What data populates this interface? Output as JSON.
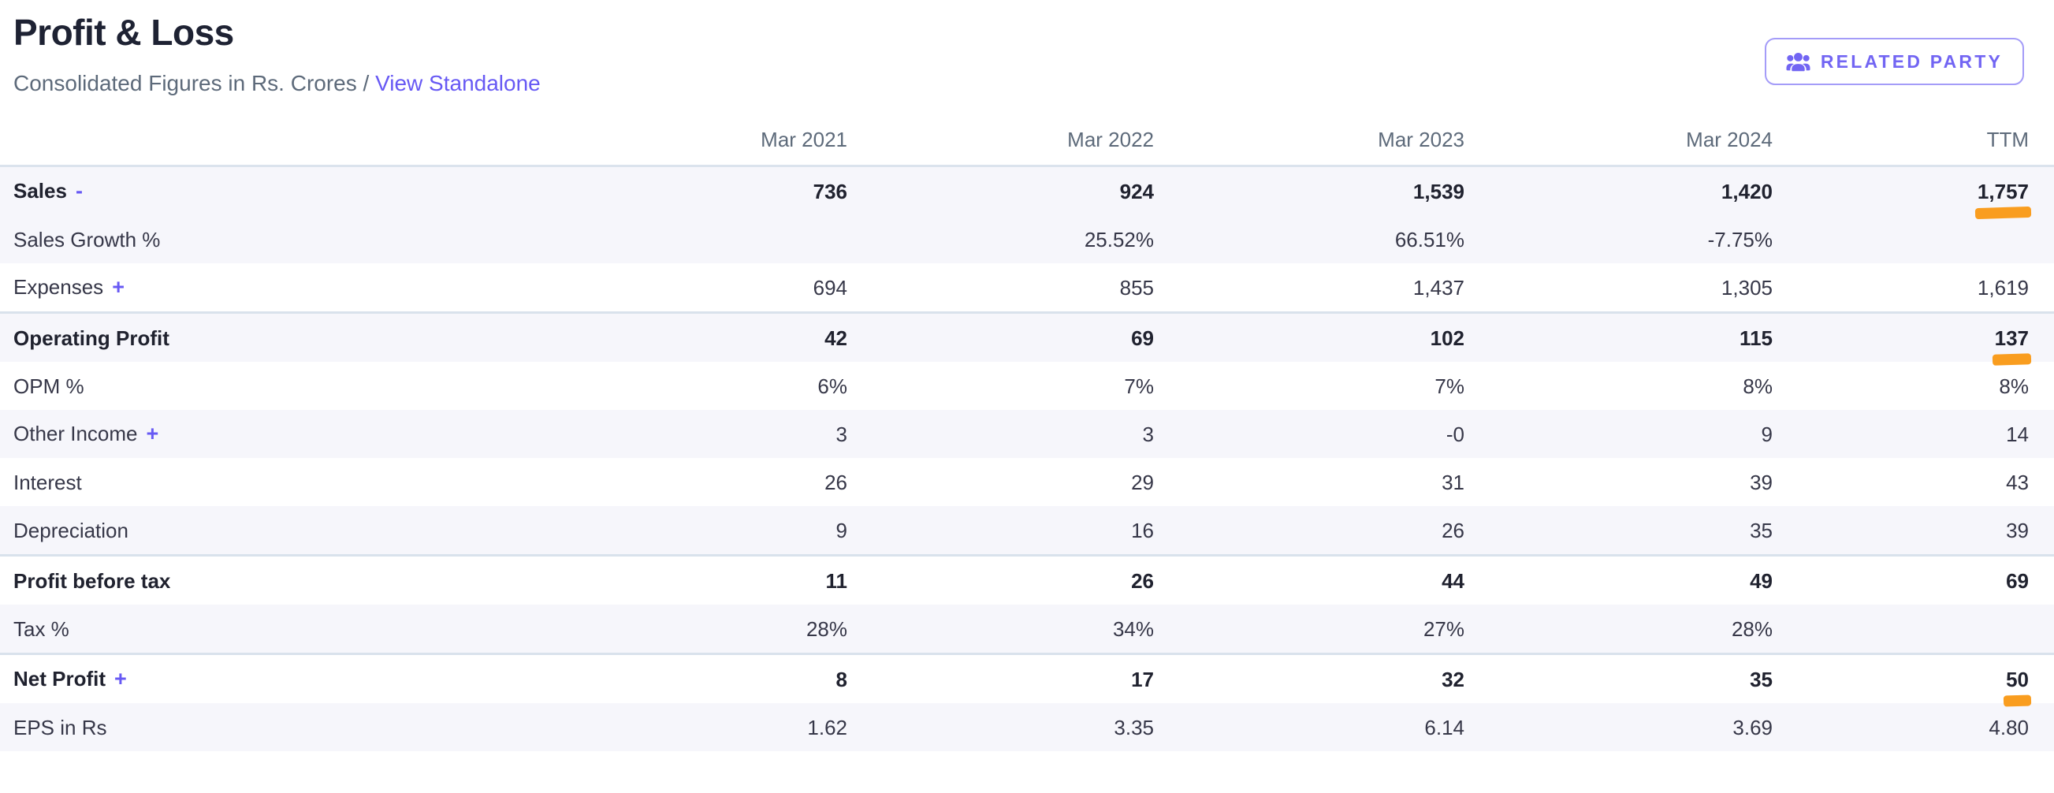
{
  "page": {
    "title": "Profit & Loss",
    "subtitle_prefix": "Consolidated Figures in Rs. Crores",
    "subtitle_separator": " / ",
    "standalone_link": "View Standalone",
    "related_party_button": "RELATED PARTY"
  },
  "colors": {
    "accent_purple": "#6759f4",
    "highlight_orange": "#f99d1f",
    "row_stripe": "#f6f6fb",
    "divider_line": "#d9e2ec"
  },
  "table": {
    "columns": [
      "Mar 2021",
      "Mar 2022",
      "Mar 2023",
      "Mar 2024",
      "TTM"
    ],
    "rows": [
      {
        "label": "Sales",
        "toggle": "-",
        "bold": true,
        "shaded": true,
        "divider": false,
        "ttm_highlight": true,
        "values": [
          "736",
          "924",
          "1,539",
          "1,420",
          "1,757"
        ]
      },
      {
        "label": "Sales Growth %",
        "toggle": null,
        "bold": false,
        "shaded": true,
        "divider": false,
        "ttm_highlight": false,
        "values": [
          "",
          "25.52%",
          "66.51%",
          "-7.75%",
          ""
        ]
      },
      {
        "label": "Expenses",
        "toggle": "+",
        "bold": false,
        "shaded": false,
        "divider": false,
        "ttm_highlight": false,
        "values": [
          "694",
          "855",
          "1,437",
          "1,305",
          "1,619"
        ]
      },
      {
        "label": "Operating Profit",
        "toggle": null,
        "bold": true,
        "shaded": true,
        "divider": true,
        "ttm_highlight": true,
        "values": [
          "42",
          "69",
          "102",
          "115",
          "137"
        ]
      },
      {
        "label": "OPM %",
        "toggle": null,
        "bold": false,
        "shaded": false,
        "divider": false,
        "ttm_highlight": false,
        "values": [
          "6%",
          "7%",
          "7%",
          "8%",
          "8%"
        ]
      },
      {
        "label": "Other Income",
        "toggle": "+",
        "bold": false,
        "shaded": true,
        "divider": false,
        "ttm_highlight": false,
        "values": [
          "3",
          "3",
          "-0",
          "9",
          "14"
        ]
      },
      {
        "label": "Interest",
        "toggle": null,
        "bold": false,
        "shaded": false,
        "divider": false,
        "ttm_highlight": false,
        "values": [
          "26",
          "29",
          "31",
          "39",
          "43"
        ]
      },
      {
        "label": "Depreciation",
        "toggle": null,
        "bold": false,
        "shaded": true,
        "divider": false,
        "ttm_highlight": false,
        "values": [
          "9",
          "16",
          "26",
          "35",
          "39"
        ]
      },
      {
        "label": "Profit before tax",
        "toggle": null,
        "bold": true,
        "shaded": false,
        "divider": true,
        "ttm_highlight": false,
        "values": [
          "11",
          "26",
          "44",
          "49",
          "69"
        ]
      },
      {
        "label": "Tax %",
        "toggle": null,
        "bold": false,
        "shaded": true,
        "divider": false,
        "ttm_highlight": false,
        "values": [
          "28%",
          "34%",
          "27%",
          "28%",
          ""
        ]
      },
      {
        "label": "Net Profit",
        "toggle": "+",
        "bold": true,
        "shaded": false,
        "divider": true,
        "ttm_highlight": true,
        "values": [
          "8",
          "17",
          "32",
          "35",
          "50"
        ]
      },
      {
        "label": "EPS in Rs",
        "toggle": null,
        "bold": false,
        "shaded": true,
        "divider": false,
        "ttm_highlight": false,
        "values": [
          "1.62",
          "3.35",
          "6.14",
          "3.69",
          "4.80"
        ]
      }
    ]
  }
}
